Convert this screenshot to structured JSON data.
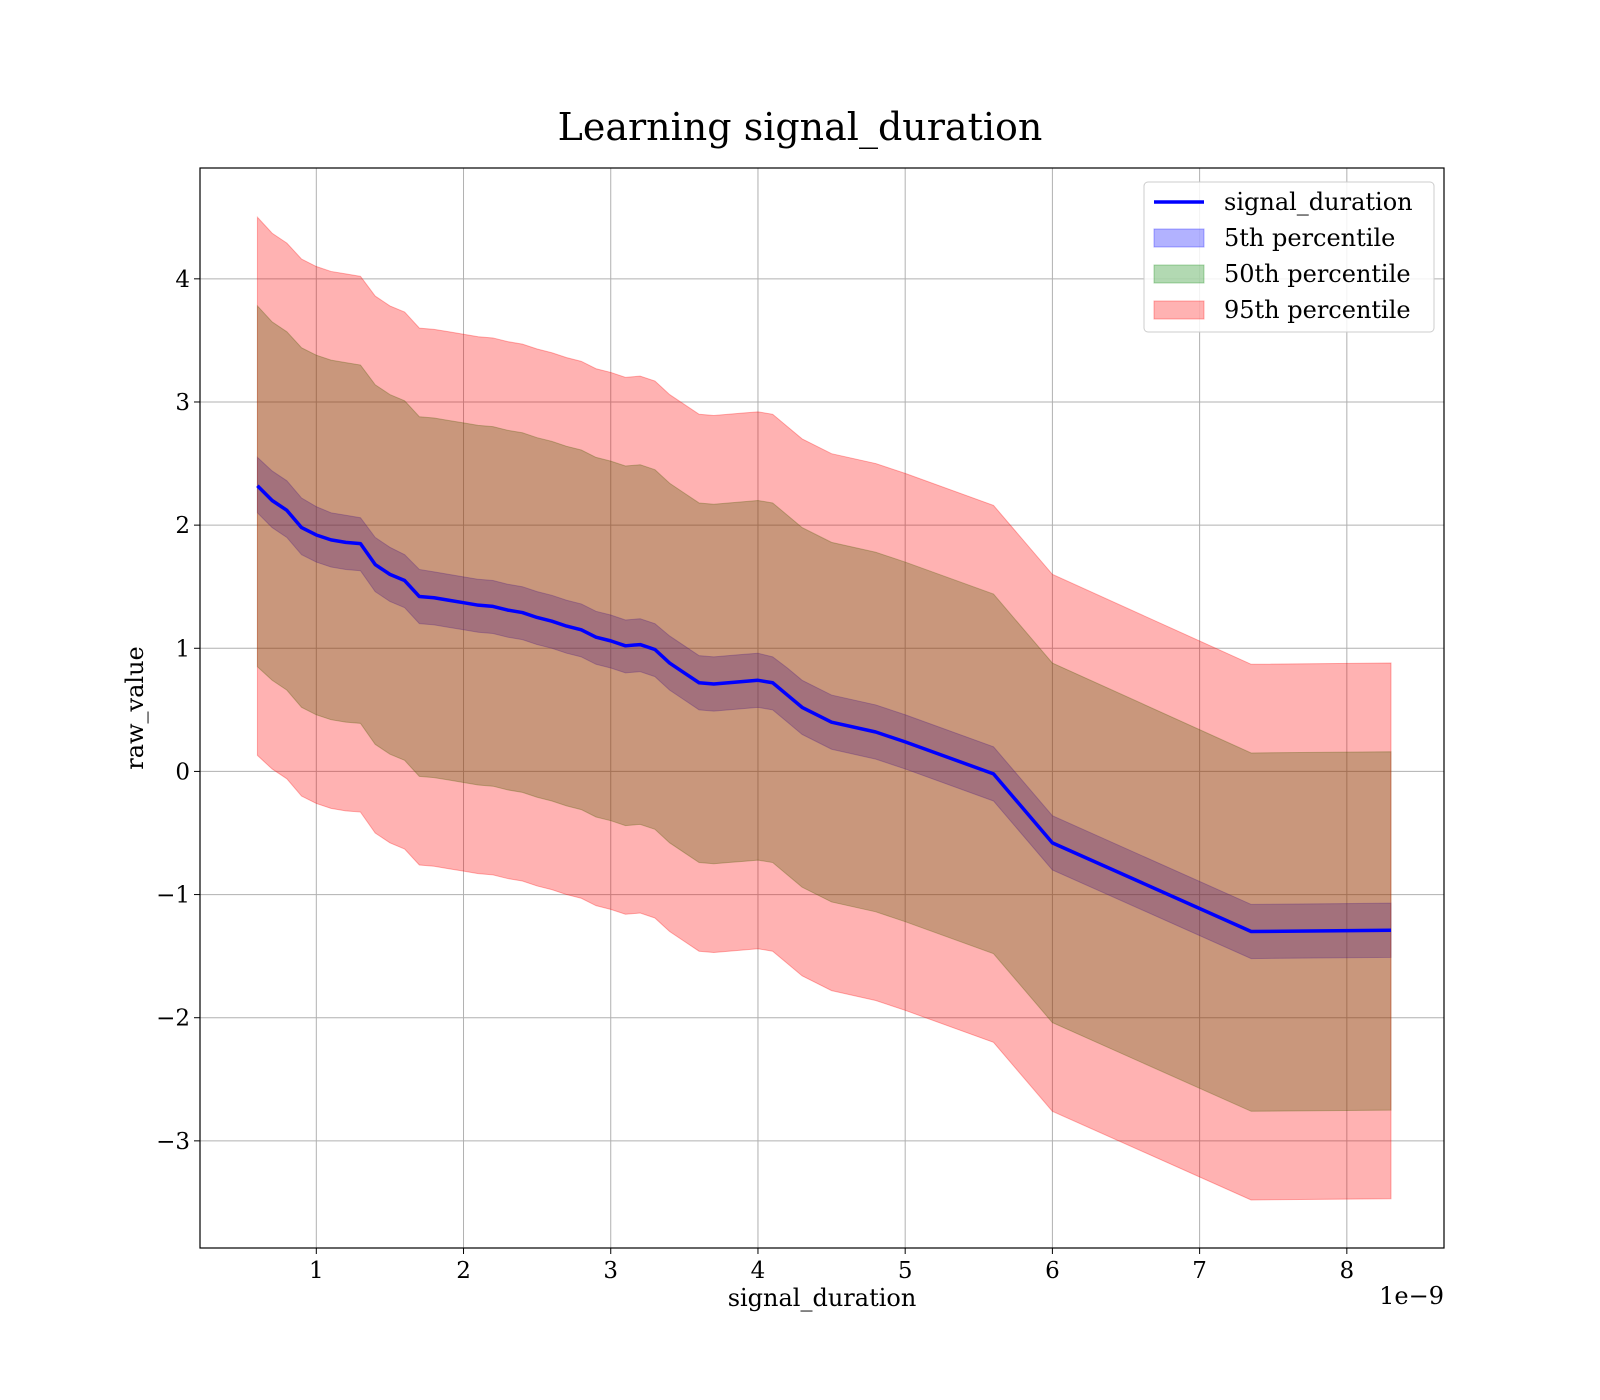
{
  "chart_data": {
    "type": "line",
    "title": "Learning signal_duration",
    "xlabel": "signal_duration",
    "ylabel": "raw_value",
    "x_offset_text": "1e−9",
    "xlim": [
      0.21,
      8.66
    ],
    "ylim": [
      -3.87,
      4.9
    ],
    "xticks": [
      1,
      2,
      3,
      4,
      5,
      6,
      7,
      8
    ],
    "yticks": [
      -3,
      -2,
      -1,
      0,
      1,
      2,
      3,
      4
    ],
    "ytick_labels": [
      "−3",
      "−2",
      "−1",
      "0",
      "1",
      "2",
      "3",
      "4"
    ],
    "grid": true,
    "legend_position": "top-right",
    "legend": [
      {
        "label": "signal_duration",
        "kind": "line",
        "color": "#0000ff"
      },
      {
        "label": "5th percentile",
        "kind": "patch",
        "color": "#0000ff"
      },
      {
        "label": "50th percentile",
        "kind": "patch",
        "color": "#008000"
      },
      {
        "label": "95th percentile",
        "kind": "patch",
        "color": "#ff0000"
      }
    ],
    "x": [
      0.6,
      0.7,
      0.8,
      0.9,
      1.0,
      1.1,
      1.2,
      1.3,
      1.4,
      1.5,
      1.6,
      1.7,
      1.8,
      1.9,
      2.0,
      2.1,
      2.2,
      2.3,
      2.4,
      2.5,
      2.6,
      2.7,
      2.8,
      2.9,
      3.0,
      3.1,
      3.2,
      3.3,
      3.4,
      3.5,
      3.6,
      3.7,
      3.8,
      3.9,
      4.0,
      4.1,
      4.2,
      4.3,
      4.5,
      4.8,
      5.0,
      5.6,
      6.0,
      7.35,
      8.3
    ],
    "series": [
      {
        "name": "signal_duration",
        "values": [
          2.32,
          2.2,
          2.12,
          1.98,
          1.92,
          1.88,
          1.86,
          1.85,
          1.68,
          1.6,
          1.55,
          1.42,
          1.41,
          1.39,
          1.37,
          1.35,
          1.34,
          1.31,
          1.29,
          1.25,
          1.22,
          1.18,
          1.15,
          1.09,
          1.06,
          1.02,
          1.03,
          0.99,
          0.88,
          0.8,
          0.72,
          0.71,
          0.72,
          0.73,
          0.74,
          0.72,
          0.62,
          0.52,
          0.4,
          0.32,
          0.24,
          -0.02,
          -0.58,
          -1.3,
          -1.29
        ]
      }
    ],
    "bands": [
      {
        "name": "5th percentile",
        "upper": [
          2.55,
          2.44,
          2.36,
          2.22,
          2.15,
          2.1,
          2.08,
          2.06,
          1.9,
          1.82,
          1.76,
          1.64,
          1.62,
          1.6,
          1.58,
          1.56,
          1.55,
          1.52,
          1.5,
          1.46,
          1.43,
          1.39,
          1.36,
          1.3,
          1.27,
          1.23,
          1.24,
          1.2,
          1.1,
          1.02,
          0.94,
          0.93,
          0.94,
          0.95,
          0.96,
          0.93,
          0.84,
          0.74,
          0.62,
          0.54,
          0.46,
          0.2,
          -0.36,
          -1.08,
          -1.07
        ],
        "lower": [
          2.1,
          1.98,
          1.9,
          1.76,
          1.7,
          1.66,
          1.64,
          1.63,
          1.46,
          1.38,
          1.33,
          1.2,
          1.19,
          1.17,
          1.15,
          1.13,
          1.12,
          1.09,
          1.07,
          1.03,
          1.0,
          0.96,
          0.93,
          0.87,
          0.84,
          0.8,
          0.81,
          0.77,
          0.66,
          0.58,
          0.5,
          0.49,
          0.5,
          0.51,
          0.52,
          0.5,
          0.4,
          0.3,
          0.18,
          0.1,
          0.02,
          -0.24,
          -0.8,
          -1.52,
          -1.51
        ]
      },
      {
        "name": "50th percentile",
        "upper": [
          3.78,
          3.65,
          3.57,
          3.44,
          3.38,
          3.34,
          3.32,
          3.3,
          3.14,
          3.06,
          3.01,
          2.88,
          2.87,
          2.85,
          2.83,
          2.81,
          2.8,
          2.77,
          2.75,
          2.71,
          2.68,
          2.64,
          2.61,
          2.55,
          2.52,
          2.48,
          2.49,
          2.45,
          2.34,
          2.26,
          2.18,
          2.17,
          2.18,
          2.19,
          2.2,
          2.18,
          2.08,
          1.98,
          1.86,
          1.78,
          1.7,
          1.44,
          0.88,
          0.15,
          0.16
        ],
        "lower": [
          0.85,
          0.74,
          0.66,
          0.52,
          0.46,
          0.42,
          0.4,
          0.39,
          0.22,
          0.14,
          0.09,
          -0.04,
          -0.05,
          -0.07,
          -0.09,
          -0.11,
          -0.12,
          -0.15,
          -0.17,
          -0.21,
          -0.24,
          -0.28,
          -0.31,
          -0.37,
          -0.4,
          -0.44,
          -0.43,
          -0.47,
          -0.58,
          -0.66,
          -0.74,
          -0.75,
          -0.74,
          -0.73,
          -0.72,
          -0.74,
          -0.84,
          -0.94,
          -1.06,
          -1.14,
          -1.22,
          -1.48,
          -2.04,
          -2.76,
          -2.75
        ]
      },
      {
        "name": "95th percentile",
        "upper": [
          4.5,
          4.37,
          4.29,
          4.16,
          4.1,
          4.06,
          4.04,
          4.02,
          3.86,
          3.78,
          3.73,
          3.6,
          3.59,
          3.57,
          3.55,
          3.53,
          3.52,
          3.49,
          3.47,
          3.43,
          3.4,
          3.36,
          3.33,
          3.27,
          3.24,
          3.2,
          3.21,
          3.17,
          3.06,
          2.98,
          2.9,
          2.89,
          2.9,
          2.91,
          2.92,
          2.9,
          2.8,
          2.7,
          2.58,
          2.5,
          2.42,
          2.16,
          1.6,
          0.87,
          0.88
        ],
        "lower": [
          0.13,
          0.02,
          -0.06,
          -0.2,
          -0.26,
          -0.3,
          -0.32,
          -0.33,
          -0.5,
          -0.58,
          -0.63,
          -0.76,
          -0.77,
          -0.79,
          -0.81,
          -0.83,
          -0.84,
          -0.87,
          -0.89,
          -0.93,
          -0.96,
          -1.0,
          -1.03,
          -1.09,
          -1.12,
          -1.16,
          -1.15,
          -1.19,
          -1.3,
          -1.38,
          -1.46,
          -1.47,
          -1.46,
          -1.45,
          -1.44,
          -1.46,
          -1.56,
          -1.66,
          -1.78,
          -1.86,
          -1.94,
          -2.2,
          -2.76,
          -3.48,
          -3.47
        ]
      }
    ],
    "colors": {
      "line": "#0000ff",
      "band_5th": "#0000ff",
      "band_50th": "#008000",
      "band_95th": "#ff0000"
    }
  }
}
